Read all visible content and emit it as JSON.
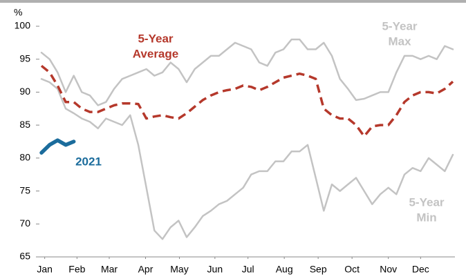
{
  "chart_data": {
    "type": "line",
    "y_label": "%",
    "x": [
      1,
      2,
      3,
      4,
      5,
      6,
      7,
      8,
      9,
      10,
      11,
      12,
      13,
      14,
      15,
      16,
      17,
      18,
      19,
      20,
      21,
      22,
      23,
      24,
      25,
      26,
      27,
      28,
      29,
      30,
      31,
      32,
      33,
      34,
      35,
      36,
      37,
      38,
      39,
      40,
      41,
      42,
      43,
      44,
      45,
      46,
      47,
      48,
      49,
      50,
      51,
      52
    ],
    "xlim": [
      1,
      52
    ],
    "xticks": [
      {
        "value": 1.4,
        "label": "Jan"
      },
      {
        "value": 5.4,
        "label": "Feb"
      },
      {
        "value": 9.4,
        "label": "Mar"
      },
      {
        "value": 13.9,
        "label": "Apr"
      },
      {
        "value": 18.1,
        "label": "May"
      },
      {
        "value": 22.5,
        "label": "Jun"
      },
      {
        "value": 26.6,
        "label": "Jul"
      },
      {
        "value": 31.1,
        "label": "Aug"
      },
      {
        "value": 35.3,
        "label": "Sep"
      },
      {
        "value": 39.5,
        "label": "Oct"
      },
      {
        "value": 44,
        "label": "Nov"
      },
      {
        "value": 48,
        "label": "Dec"
      }
    ],
    "ylim": [
      65,
      100
    ],
    "yticks": [
      65,
      70,
      75,
      80,
      85,
      90,
      95,
      100
    ],
    "series": [
      {
        "color": "#c3c3c3",
        "dash": false,
        "width": 2.5,
        "values": [
          96,
          95,
          93,
          90,
          92.5,
          90,
          89.5,
          88,
          88.5,
          90.5,
          92,
          92.5,
          93,
          93.5,
          92.5,
          93,
          94.5,
          93.5,
          91.5,
          93.5,
          94.5,
          95.5,
          95.5,
          96.5,
          97.5,
          97,
          96.5,
          94.5,
          94,
          96,
          96.5,
          98,
          98,
          96.5,
          96.5,
          97.5,
          95.5,
          92,
          90.5,
          88.8,
          89,
          89.5,
          90,
          90,
          93,
          95.5,
          95.5,
          95,
          95.5,
          95,
          97,
          96.5
        ]
      },
      {
        "color": "#c3c3c3",
        "dash": false,
        "width": 2.5,
        "values": [
          92,
          91.5,
          90.5,
          87.5,
          86.8,
          86,
          85.5,
          84.5,
          86,
          85.5,
          85,
          86.5,
          82,
          75.5,
          69,
          67.7,
          69.5,
          70.5,
          68,
          69.5,
          71.2,
          72,
          73,
          73.5,
          74.5,
          75.5,
          77.5,
          78,
          78,
          79.5,
          79.5,
          81,
          81,
          82,
          77,
          72,
          76,
          75,
          76,
          77,
          75,
          73,
          74.5,
          75.5,
          74.5,
          77.5,
          78.5,
          78,
          80,
          79,
          78,
          80.5
        ]
      },
      {
        "color": "#b5382b",
        "dash": true,
        "width": 3.5,
        "values": [
          94,
          93,
          91,
          88.5,
          88.5,
          87.5,
          87,
          87,
          87.5,
          88,
          88.3,
          88.3,
          88.2,
          86,
          86.3,
          86.5,
          86.2,
          86,
          86.8,
          87.8,
          88.8,
          89.5,
          90,
          90.3,
          90.5,
          91,
          90.8,
          90.3,
          90.8,
          91.5,
          92.2,
          92.5,
          92.8,
          92.5,
          92,
          87.5,
          86.5,
          86,
          86,
          85,
          83.3,
          84.8,
          85,
          85,
          86.5,
          88.5,
          89.5,
          90,
          90,
          89.8,
          90.5,
          91.6
        ]
      },
      {
        "color": "#1b6c9c",
        "dash": false,
        "width": 5.5,
        "values": [
          80.8,
          82,
          82.7,
          82,
          82.5,
          null,
          null,
          null,
          null,
          null,
          null,
          null,
          null,
          null,
          null,
          null,
          null,
          null,
          null,
          null,
          null,
          null,
          null,
          null,
          null,
          null,
          null,
          null,
          null,
          null,
          null,
          null,
          null,
          null,
          null,
          null,
          null,
          null,
          null,
          null,
          null,
          null,
          null,
          null,
          null,
          null,
          null,
          null,
          null,
          null,
          null,
          null
        ]
      }
    ],
    "annotations": [
      {
        "lines": [
          "5-Year",
          "Average"
        ],
        "color": "#b5382b",
        "series": 2
      },
      {
        "lines": [
          "5-Year",
          "Max"
        ],
        "color": "#c3c3c3",
        "series": 0
      },
      {
        "lines": [
          "5-Year",
          "Min"
        ],
        "color": "#c3c3c3",
        "series": 1
      },
      {
        "lines": [
          "2021"
        ],
        "color": "#1b6c9c",
        "series": 3
      }
    ]
  }
}
